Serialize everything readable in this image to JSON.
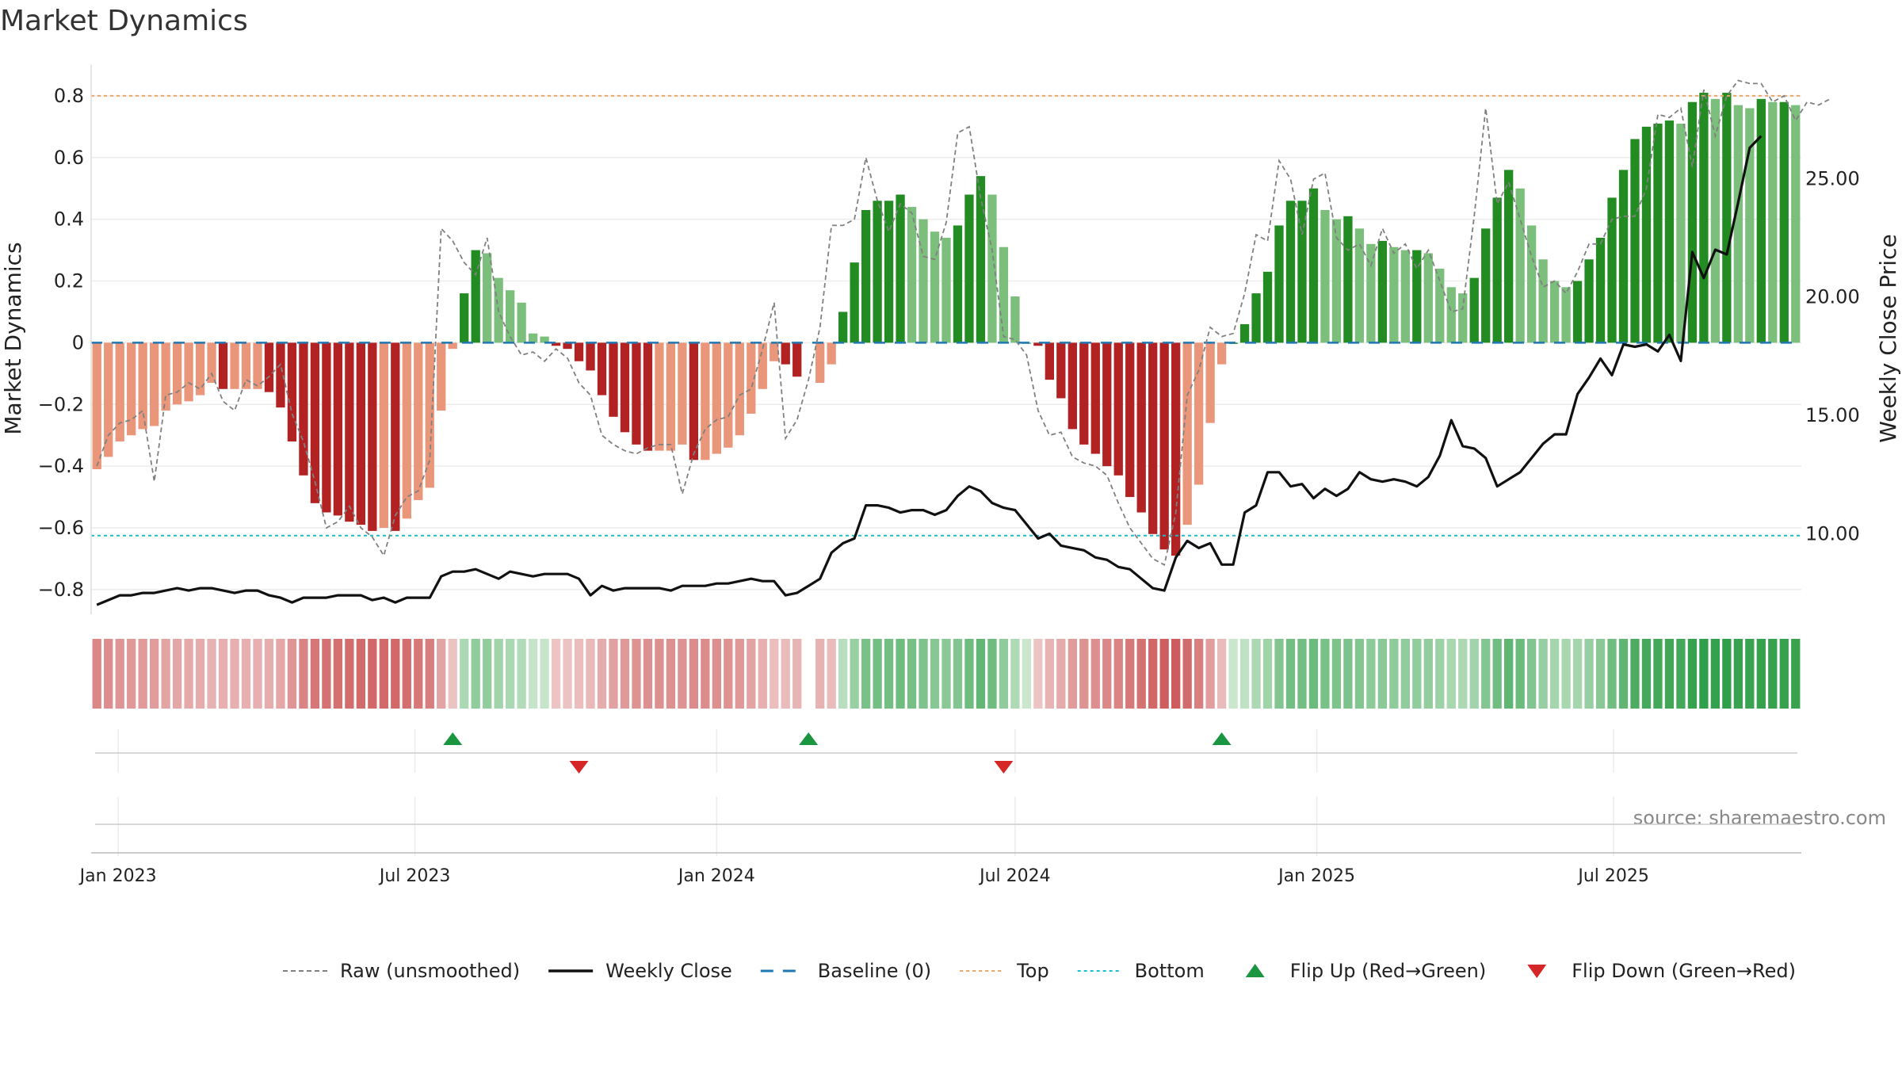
{
  "chart_data": {
    "type": "bar",
    "title": "Market Dynamics",
    "ylabel_left": "Market Dynamics",
    "ylabel_right": "Weekly Close Price",
    "ylim_left": [
      -0.88,
      0.9
    ],
    "ylim_right": [
      6.6,
      29.8
    ],
    "yticks_left": [
      "0.8",
      "0.6",
      "0.4",
      "0.2",
      "0",
      "−0.2",
      "−0.4",
      "−0.6",
      "−0.8"
    ],
    "yticks_right": [
      "25.00",
      "20.00",
      "15.00",
      "10.00"
    ],
    "x_tick_labels": [
      "Jan 2023",
      "Jul 2023",
      "Jan 2024",
      "Jul 2024",
      "Jan 2025",
      "Jul 2025"
    ],
    "x_tick_dates": [
      "2023-01-01",
      "2023-07-01",
      "2024-01-01",
      "2024-07-01",
      "2025-01-01",
      "2025-07-01"
    ],
    "first_week": "2022-12-19",
    "top_threshold": 0.8,
    "bottom_threshold": -0.625,
    "baseline": 0,
    "colors": {
      "strong_green": "#228b22",
      "weak_green": "#7cbf7c",
      "strong_red": "#b22222",
      "weak_red": "#e9967a",
      "raw": "#808080",
      "close": "#111111",
      "baseline": "#1f77b4",
      "top": "#f4a460",
      "bottom": "#17becf",
      "flip_up": "#1a9641",
      "flip_down": "#d62728"
    },
    "series": [
      {
        "name": "Market Dynamics",
        "values": [
          -0.41,
          -0.37,
          -0.32,
          -0.3,
          -0.28,
          -0.27,
          -0.22,
          -0.2,
          -0.19,
          -0.17,
          -0.13,
          -0.15,
          -0.15,
          -0.15,
          -0.15,
          -0.16,
          -0.21,
          -0.32,
          -0.43,
          -0.52,
          -0.55,
          -0.56,
          -0.58,
          -0.59,
          -0.61,
          -0.6,
          -0.61,
          -0.57,
          -0.51,
          -0.47,
          -0.22,
          -0.02,
          0.16,
          0.3,
          0.29,
          0.21,
          0.17,
          0.13,
          0.03,
          0.02,
          -0.01,
          -0.02,
          -0.06,
          -0.09,
          -0.17,
          -0.24,
          -0.29,
          -0.33,
          -0.35,
          -0.35,
          -0.35,
          -0.33,
          -0.38,
          -0.38,
          -0.36,
          -0.34,
          -0.3,
          -0.23,
          -0.15,
          -0.06,
          -0.07,
          -0.11,
          null,
          -0.13,
          -0.07,
          0.1,
          0.26,
          0.43,
          0.46,
          0.46,
          0.48,
          0.44,
          0.4,
          0.36,
          0.34,
          0.38,
          0.48,
          0.54,
          0.48,
          0.31,
          0.15,
          0.0,
          -0.01,
          -0.12,
          -0.18,
          -0.28,
          -0.33,
          -0.36,
          -0.4,
          -0.43,
          -0.5,
          -0.55,
          -0.62,
          -0.67,
          -0.69,
          -0.59,
          -0.46,
          -0.26,
          -0.07,
          0.0,
          0.06,
          0.16,
          0.23,
          0.38,
          0.46,
          0.46,
          0.5,
          0.43,
          0.4,
          0.41,
          0.37,
          0.32,
          0.33,
          0.31,
          0.3,
          0.3,
          0.29,
          0.24,
          0.18,
          0.16,
          0.21,
          0.37,
          0.47,
          0.56,
          0.5,
          0.38,
          0.27,
          0.2,
          0.18,
          0.2,
          0.27,
          0.34,
          0.47,
          0.56,
          0.66,
          0.7,
          0.71,
          0.72,
          0.71,
          0.78,
          0.81,
          0.79,
          0.81,
          0.77,
          0.76,
          0.79,
          0.78,
          0.78,
          0.77
        ]
      },
      {
        "name": "Raw (unsmoothed)",
        "values": [
          -0.4,
          -0.3,
          -0.26,
          -0.25,
          -0.22,
          -0.45,
          -0.17,
          -0.16,
          -0.13,
          -0.15,
          -0.1,
          -0.19,
          -0.22,
          -0.12,
          -0.14,
          -0.11,
          -0.07,
          -0.23,
          -0.32,
          -0.45,
          -0.6,
          -0.58,
          -0.53,
          -0.6,
          -0.63,
          -0.69,
          -0.56,
          -0.5,
          -0.48,
          -0.38,
          0.37,
          0.33,
          0.26,
          0.22,
          0.34,
          0.1,
          0.02,
          -0.04,
          -0.03,
          -0.06,
          -0.02,
          -0.05,
          -0.13,
          -0.17,
          -0.3,
          -0.33,
          -0.35,
          -0.36,
          -0.34,
          -0.33,
          -0.33,
          -0.49,
          -0.36,
          -0.28,
          -0.25,
          -0.24,
          -0.17,
          -0.15,
          -0.02,
          0.13,
          -0.31,
          -0.25,
          -0.12,
          0.05,
          0.38,
          0.38,
          0.4,
          0.6,
          0.46,
          0.36,
          0.45,
          0.42,
          0.28,
          0.27,
          0.39,
          0.68,
          0.7,
          0.47,
          0.3,
          0.02,
          0.01,
          -0.04,
          -0.22,
          -0.3,
          -0.29,
          -0.37,
          -0.39,
          -0.4,
          -0.43,
          -0.52,
          -0.6,
          -0.65,
          -0.7,
          -0.72,
          -0.55,
          -0.17,
          -0.09,
          0.05,
          0.02,
          0.03,
          0.16,
          0.35,
          0.33,
          0.59,
          0.53,
          0.35,
          0.53,
          0.55,
          0.34,
          0.3,
          0.32,
          0.25,
          0.37,
          0.29,
          0.32,
          0.24,
          0.3,
          0.2,
          0.1,
          0.11,
          0.41,
          0.76,
          0.45,
          0.52,
          0.4,
          0.28,
          0.18,
          0.2,
          0.16,
          0.23,
          0.32,
          0.32,
          0.4,
          0.41,
          0.41,
          0.5,
          0.74,
          0.73,
          0.76,
          0.57,
          0.82,
          0.67,
          0.8,
          0.85,
          0.84,
          0.84,
          0.78,
          0.8,
          0.72,
          0.78,
          0.77,
          0.79
        ]
      },
      {
        "name": "Weekly Close",
        "values": [
          7.0,
          7.2,
          7.4,
          7.4,
          7.5,
          7.5,
          7.6,
          7.7,
          7.6,
          7.7,
          7.7,
          7.6,
          7.5,
          7.6,
          7.6,
          7.4,
          7.3,
          7.1,
          7.3,
          7.3,
          7.3,
          7.4,
          7.4,
          7.4,
          7.2,
          7.3,
          7.1,
          7.3,
          7.3,
          7.3,
          8.2,
          8.4,
          8.4,
          8.5,
          8.3,
          8.1,
          8.4,
          8.3,
          8.2,
          8.3,
          8.3,
          8.3,
          8.1,
          7.4,
          7.8,
          7.6,
          7.7,
          7.7,
          7.7,
          7.7,
          7.6,
          7.8,
          7.8,
          7.8,
          7.9,
          7.9,
          8.0,
          8.1,
          8.0,
          8.0,
          7.4,
          7.5,
          7.8,
          8.1,
          9.2,
          9.6,
          9.8,
          11.2,
          11.2,
          11.1,
          10.9,
          11.0,
          11.0,
          10.8,
          11.0,
          11.6,
          12.0,
          11.8,
          11.3,
          11.1,
          11.0,
          10.4,
          9.8,
          10.0,
          9.5,
          9.4,
          9.3,
          9.0,
          8.9,
          8.6,
          8.5,
          8.1,
          7.7,
          7.6,
          9.0,
          9.7,
          9.4,
          9.6,
          8.7,
          8.7,
          10.9,
          11.2,
          12.6,
          12.6,
          12.0,
          12.1,
          11.5,
          11.9,
          11.6,
          11.9,
          12.6,
          12.3,
          12.2,
          12.3,
          12.2,
          12.0,
          12.4,
          13.3,
          14.8,
          13.7,
          13.6,
          13.2,
          12.0,
          12.3,
          12.6,
          13.2,
          13.8,
          14.2,
          14.2,
          15.9,
          16.6,
          17.4,
          16.7,
          18.0,
          17.9,
          18.0,
          17.7,
          18.4,
          17.3,
          21.9,
          20.8,
          22.0,
          21.8,
          24.0,
          26.3,
          26.8
        ]
      }
    ],
    "heat_strip": [
      -0.41,
      -0.37,
      -0.32,
      -0.3,
      -0.28,
      -0.27,
      -0.22,
      -0.2,
      -0.19,
      -0.17,
      -0.13,
      -0.15,
      -0.15,
      -0.15,
      -0.15,
      -0.16,
      -0.21,
      -0.32,
      -0.43,
      -0.52,
      -0.55,
      -0.56,
      -0.58,
      -0.59,
      -0.61,
      -0.6,
      -0.61,
      -0.57,
      -0.51,
      -0.47,
      -0.22,
      -0.02,
      0.16,
      0.3,
      0.29,
      0.21,
      0.17,
      0.13,
      0.03,
      0.02,
      -0.01,
      -0.02,
      -0.06,
      -0.09,
      -0.17,
      -0.24,
      -0.29,
      -0.33,
      -0.35,
      -0.35,
      -0.35,
      -0.33,
      -0.38,
      -0.38,
      -0.36,
      -0.34,
      -0.3,
      -0.23,
      -0.15,
      -0.06,
      -0.07,
      -0.11,
      null,
      -0.13,
      -0.07,
      0.1,
      0.26,
      0.43,
      0.46,
      0.46,
      0.48,
      0.44,
      0.4,
      0.36,
      0.34,
      0.38,
      0.48,
      0.54,
      0.48,
      0.31,
      0.15,
      0.0,
      -0.01,
      -0.12,
      -0.18,
      -0.28,
      -0.33,
      -0.36,
      -0.4,
      -0.43,
      -0.5,
      -0.55,
      -0.62,
      -0.67,
      -0.69,
      -0.59,
      -0.46,
      -0.26,
      -0.07,
      0.0,
      0.06,
      0.16,
      0.23,
      0.38,
      0.46,
      0.46,
      0.5,
      0.43,
      0.4,
      0.41,
      0.37,
      0.32,
      0.33,
      0.31,
      0.3,
      0.3,
      0.29,
      0.24,
      0.18,
      0.16,
      0.21,
      0.37,
      0.47,
      0.56,
      0.5,
      0.38,
      0.27,
      0.2,
      0.18,
      0.2,
      0.27,
      0.34,
      0.47,
      0.56,
      0.66,
      0.7,
      0.71,
      0.72,
      0.71,
      0.78,
      0.81,
      0.79,
      0.81,
      0.77,
      0.76,
      0.79,
      0.78,
      0.78,
      0.77
    ],
    "flip_up_dates": [
      "2023-07-24",
      "2024-02-26",
      "2024-11-04"
    ],
    "flip_down_dates": [
      "2023-10-09",
      "2024-06-24"
    ],
    "legend": [
      {
        "label": "Raw (unsmoothed)",
        "kind": "dashed-gray"
      },
      {
        "label": "Weekly Close",
        "kind": "solid-black"
      },
      {
        "label": "Baseline (0)",
        "kind": "dashed-blue"
      },
      {
        "label": "Top",
        "kind": "dotted-orange"
      },
      {
        "label": "Bottom",
        "kind": "dotted-cyan"
      },
      {
        "label": "Flip Up (Red→Green)",
        "kind": "triangle-up-green"
      },
      {
        "label": "Flip Down (Green→Red)",
        "kind": "triangle-down-red"
      }
    ],
    "legend_placement": "bottom",
    "grid": true
  },
  "source": "source: sharemaestro.com"
}
